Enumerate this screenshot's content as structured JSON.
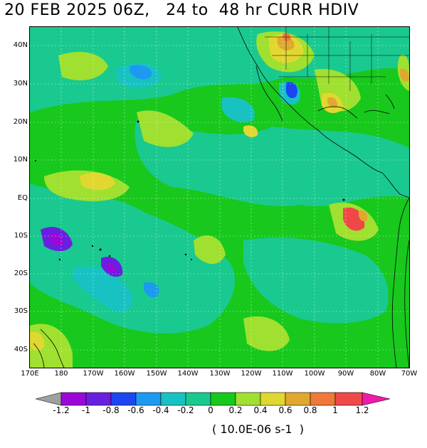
{
  "title": "20 FEB 2025 06Z,   24 to  48 hr CURR HDIV",
  "lat_labels": [
    "40N",
    "30N",
    "20N",
    "10N",
    "EQ",
    "10S",
    "20S",
    "30S",
    "40S"
  ],
  "lon_labels": [
    "170E",
    "180",
    "170W",
    "160W",
    "150W",
    "140W",
    "130W",
    "120W",
    "110W",
    "100W",
    "90W",
    "80W",
    "70W"
  ],
  "colorbar": {
    "labels": [
      "-1.2",
      "-1",
      "-0.8",
      "-0.6",
      "-0.4",
      "-0.2",
      "0",
      "0.2",
      "0.4",
      "0.6",
      "0.8",
      "1",
      "1.2"
    ],
    "colors": [
      "#a0a0a0",
      "#9a08d8",
      "#6a1fe0",
      "#1c46f2",
      "#1c9af2",
      "#19c2c2",
      "#1ac98f",
      "#18c81d",
      "#a0e030",
      "#e0d830",
      "#e0a830",
      "#f07838",
      "#f04848",
      "#f01aa8"
    ],
    "units": "( 10.0E-06 s-1  )"
  }
}
